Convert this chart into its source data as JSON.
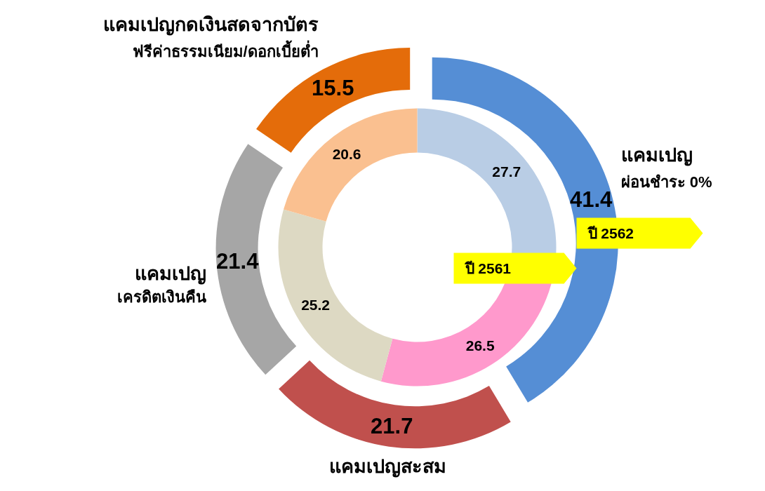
{
  "chart_data": {
    "type": "donut",
    "categories": [
      "แคมเปญ\nผ่อนชำระ 0%",
      "แคมเปญสะสม",
      "แคมเปญ\nเครดิตเงินคืน",
      "แคมเปญกดเงินสดจากบัตร\nฟรีค่าธรรมเนียม/ดอกเบี้ยต่ำ"
    ],
    "series": [
      {
        "name": "ปี 2562",
        "colors": [
          "#558ed5",
          "#c0504d",
          "#a6a6a6",
          "#e46c0a"
        ],
        "values": [
          41.4,
          21.7,
          21.4,
          15.5
        ]
      },
      {
        "name": "ปี 2561",
        "colors": [
          "#b9cde5",
          "#ff99cc",
          "#ddd9c3",
          "#fac090"
        ],
        "values": [
          27.7,
          26.5,
          25.2,
          20.6
        ]
      }
    ],
    "data_labels": true
  }
}
